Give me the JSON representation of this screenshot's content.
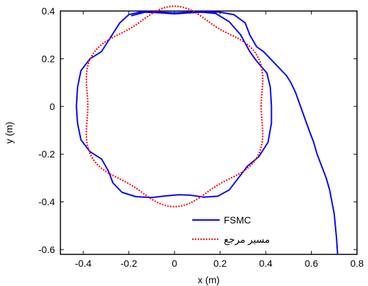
{
  "chart_data": {
    "type": "line",
    "title": "",
    "xlabel": "x (m)",
    "ylabel": "y (m)",
    "xlim": [
      -0.5,
      0.8
    ],
    "ylim": [
      -0.62,
      0.4
    ],
    "xticks": [
      -0.4,
      -0.2,
      0,
      0.2,
      0.4,
      0.6,
      0.8
    ],
    "xtick_labels": [
      "-0.4",
      "-0.2",
      "0",
      "0.2",
      "0.4",
      "0.6",
      "0.8"
    ],
    "yticks": [
      -0.6,
      -0.4,
      -0.2,
      0,
      0.2,
      0.4
    ],
    "ytick_labels": [
      "-0.6",
      "-0.4",
      "-0.2",
      "0",
      "0.2",
      "0.4"
    ],
    "grid": false,
    "legend_position": "bottom-center",
    "series": [
      {
        "name": "FSMC",
        "color": "#0000ff",
        "style": "solid",
        "points": [
          [
            0.715,
            -0.62
          ],
          [
            0.71,
            -0.55
          ],
          [
            0.705,
            -0.5
          ],
          [
            0.7,
            -0.45
          ],
          [
            0.69,
            -0.4
          ],
          [
            0.68,
            -0.35
          ],
          [
            0.665,
            -0.3
          ],
          [
            0.645,
            -0.25
          ],
          [
            0.625,
            -0.2
          ],
          [
            0.61,
            -0.15
          ],
          [
            0.59,
            -0.1
          ],
          [
            0.575,
            -0.06
          ],
          [
            0.56,
            -0.02
          ],
          [
            0.545,
            0.02
          ],
          [
            0.53,
            0.06
          ],
          [
            0.51,
            0.1
          ],
          [
            0.49,
            0.13
          ],
          [
            0.46,
            0.16
          ],
          [
            0.44,
            0.18
          ],
          [
            0.42,
            0.2
          ],
          [
            0.39,
            0.23
          ],
          [
            0.36,
            0.25
          ],
          [
            0.33,
            0.3
          ],
          [
            0.31,
            0.35
          ],
          [
            0.26,
            0.385
          ],
          [
            0.2,
            0.395
          ],
          [
            0.12,
            0.398
          ],
          [
            0.06,
            0.395
          ],
          [
            0.0,
            0.392
          ],
          [
            -0.06,
            0.395
          ],
          [
            -0.14,
            0.398
          ],
          [
            -0.2,
            0.385
          ],
          [
            -0.24,
            0.35
          ],
          [
            -0.28,
            0.29
          ],
          [
            -0.32,
            0.23
          ],
          [
            -0.37,
            0.2
          ],
          [
            -0.41,
            0.15
          ],
          [
            -0.425,
            0.08
          ],
          [
            -0.43,
            0.0
          ],
          [
            -0.425,
            -0.07
          ],
          [
            -0.41,
            -0.14
          ],
          [
            -0.37,
            -0.19
          ],
          [
            -0.32,
            -0.22
          ],
          [
            -0.29,
            -0.27
          ],
          [
            -0.27,
            -0.32
          ],
          [
            -0.23,
            -0.36
          ],
          [
            -0.17,
            -0.378
          ],
          [
            -0.1,
            -0.382
          ],
          [
            -0.04,
            -0.375
          ],
          [
            0.02,
            -0.37
          ],
          [
            0.07,
            -0.372
          ],
          [
            0.13,
            -0.38
          ],
          [
            0.19,
            -0.376
          ],
          [
            0.24,
            -0.35
          ],
          [
            0.28,
            -0.3
          ],
          [
            0.32,
            -0.25
          ],
          [
            0.37,
            -0.21
          ],
          [
            0.41,
            -0.15
          ],
          [
            0.425,
            -0.07
          ],
          [
            0.425,
            0.0
          ],
          [
            0.42,
            0.08
          ],
          [
            0.405,
            0.14
          ],
          [
            0.36,
            0.19
          ],
          [
            0.33,
            0.23
          ],
          [
            0.29,
            0.3
          ],
          [
            0.24,
            0.355
          ],
          [
            0.18,
            0.39
          ],
          [
            0.12,
            0.395
          ],
          [
            0.06,
            0.392
          ],
          [
            0.0,
            0.388
          ],
          [
            -0.06,
            0.392
          ],
          [
            -0.13,
            0.395
          ],
          [
            -0.19,
            0.38
          ]
        ]
      },
      {
        "name": "مسیر مرجع",
        "color": "#ff0000",
        "style": "dotted",
        "parametric": "r(t) = 0.4 - 0.02*cos(6t), t in [0, 2pi]"
      }
    ]
  }
}
